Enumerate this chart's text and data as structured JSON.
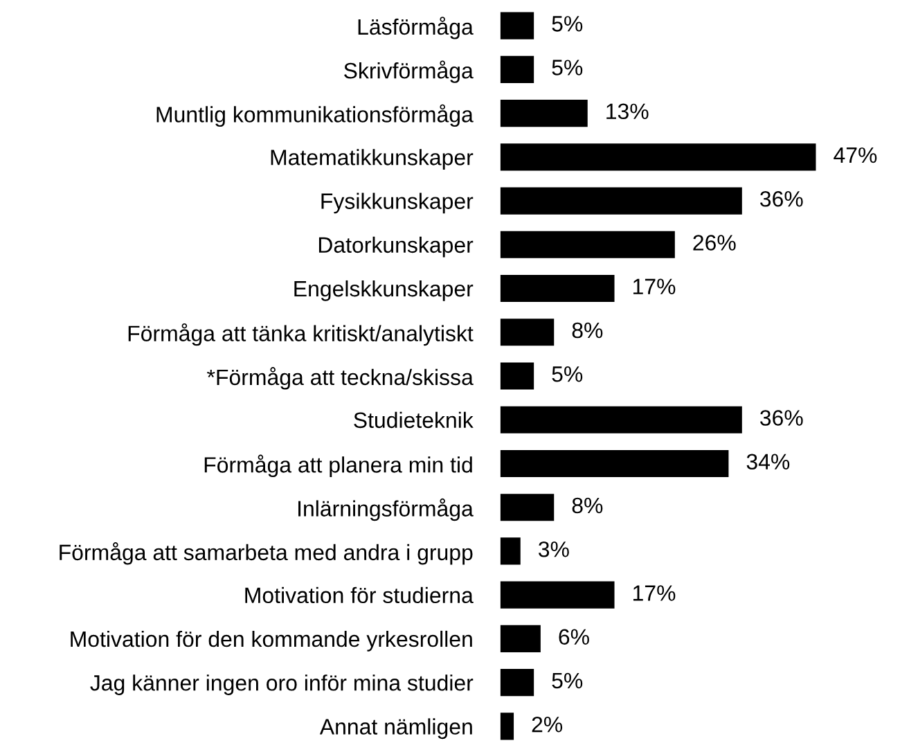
{
  "chart_data": {
    "type": "bar",
    "orientation": "horizontal",
    "categories": [
      "Läsförmåga",
      "Skrivförmåga",
      "Muntlig kommunikationsförmåga",
      "Matematikkunskaper",
      "Fysikkunskaper",
      "Datorkunskaper",
      "Engelskkunskaper",
      "Förmåga att tänka kritiskt/analytiskt",
      "*Förmåga att teckna/skissa",
      "Studieteknik",
      "Förmåga att planera min tid",
      "Inlärningsförmåga",
      "Förmåga att samarbeta med andra i grupp",
      "Motivation för studierna",
      "Motivation för den kommande yrkesrollen",
      "Jag känner ingen oro inför mina studier",
      "Annat nämligen"
    ],
    "values": [
      5,
      5,
      13,
      47,
      36,
      26,
      17,
      8,
      5,
      36,
      34,
      8,
      3,
      17,
      6,
      5,
      2
    ],
    "value_labels": [
      "5%",
      "5%",
      "13%",
      "47%",
      "36%",
      "26%",
      "17%",
      "8%",
      "5%",
      "36%",
      "34%",
      "8%",
      "3%",
      "17%",
      "6%",
      "5%",
      "2%"
    ],
    "color": "#000000",
    "tick_labels": "y"
  }
}
